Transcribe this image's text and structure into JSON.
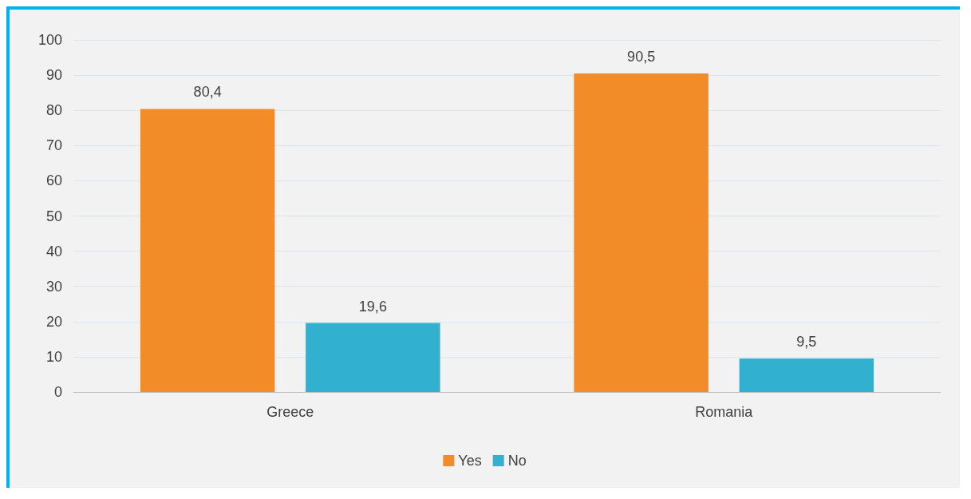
{
  "chart_data": {
    "type": "bar",
    "categories": [
      "Greece",
      "Romania"
    ],
    "series": [
      {
        "name": "Yes",
        "color": "#f28c28",
        "values": [
          80.4,
          90.5
        ],
        "value_labels": [
          "80,4",
          "90,5"
        ]
      },
      {
        "name": "No",
        "color": "#31b0d0",
        "values": [
          19.6,
          9.5
        ],
        "value_labels": [
          "19,6",
          "9,5"
        ]
      }
    ],
    "ylim": [
      0,
      100
    ],
    "yticks": [
      0,
      10,
      20,
      30,
      40,
      50,
      60,
      70,
      80,
      90,
      100
    ],
    "grid": "y",
    "legend": "bottom"
  }
}
